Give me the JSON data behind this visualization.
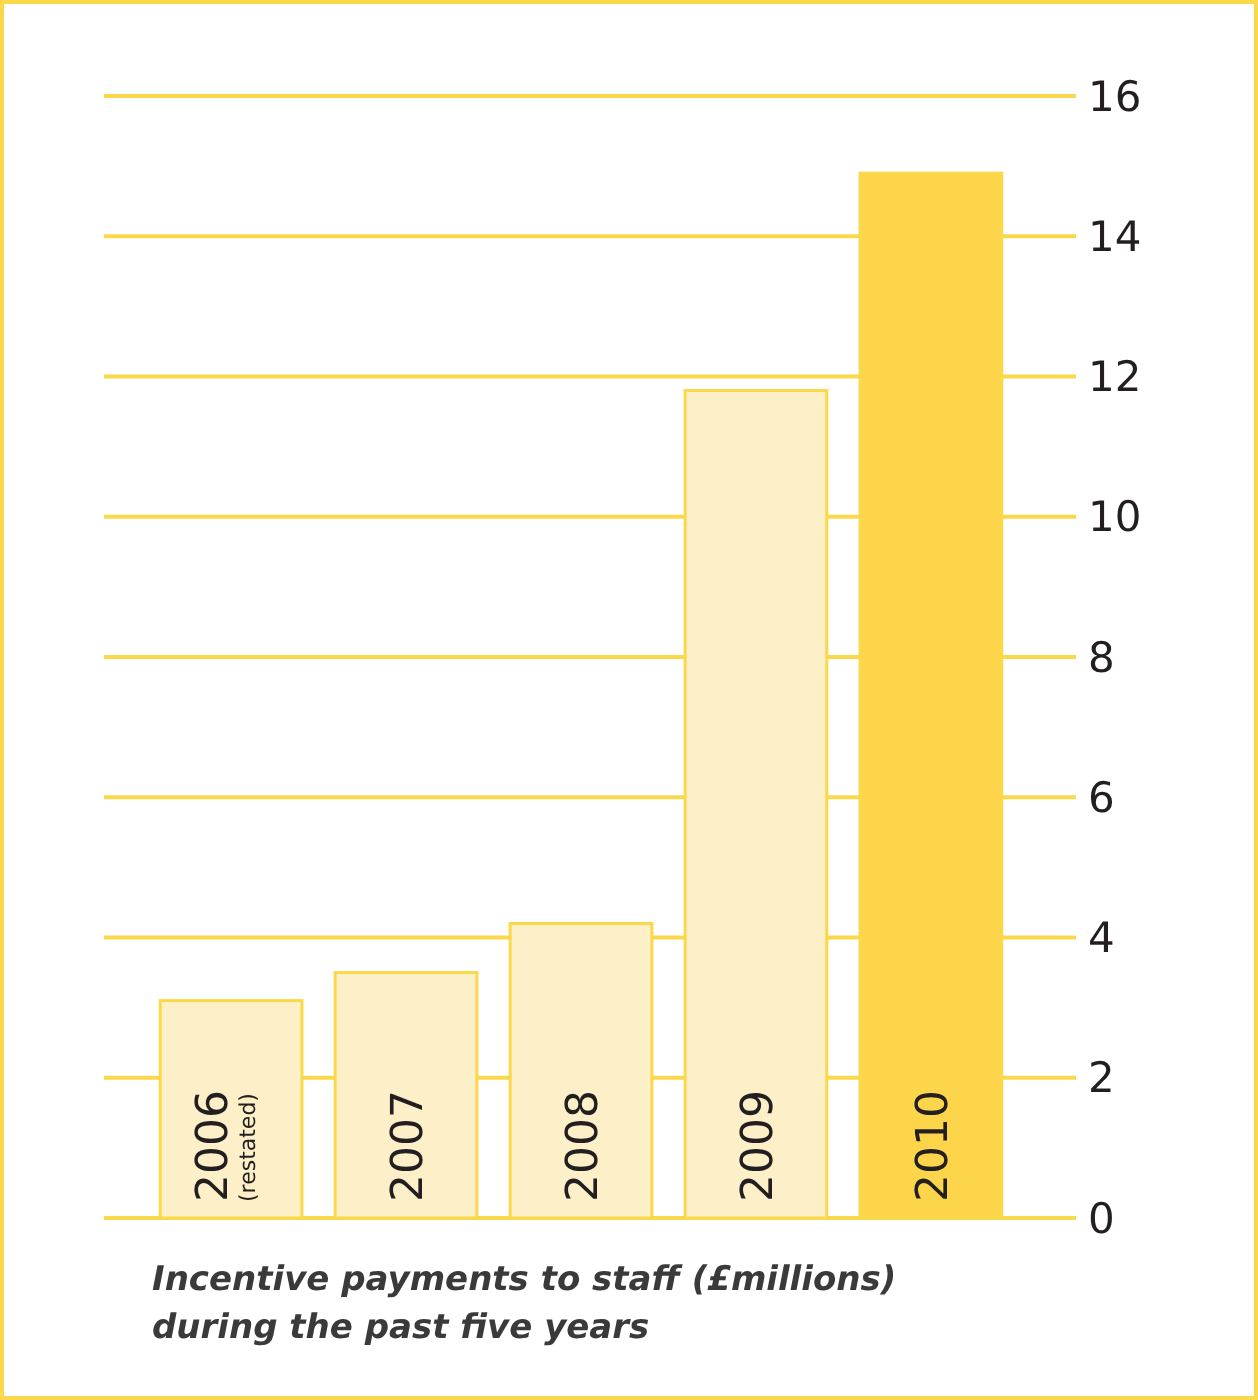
{
  "chart_data": {
    "type": "bar",
    "categories": [
      "2006\n(restated)",
      "2007",
      "2008",
      "2009",
      "2010"
    ],
    "values": [
      3.1,
      3.5,
      4.2,
      11.8,
      14.9
    ],
    "colors": [
      "#fdf0c8",
      "#fdf0c8",
      "#fdf0c8",
      "#fdf0c8",
      "#fdd54a"
    ],
    "ylim": [
      0,
      16
    ],
    "yticks": [
      0,
      2,
      4,
      6,
      8,
      10,
      12,
      14,
      16
    ],
    "grid": "y",
    "annotations": [
      "Incentive payments to staff (£millions) during the past five years"
    ]
  }
}
